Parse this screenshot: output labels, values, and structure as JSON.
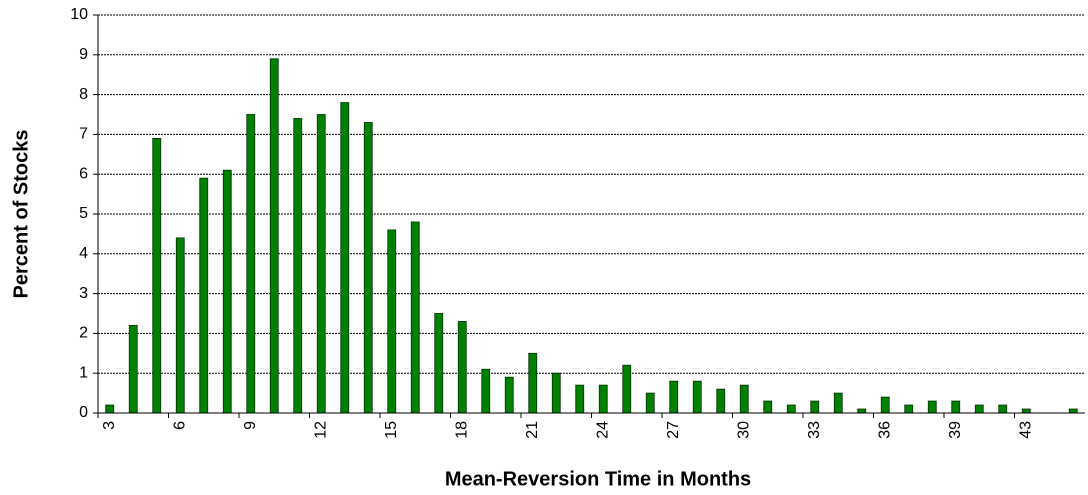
{
  "chart_data": {
    "type": "bar",
    "x_label": "Mean-Reversion Time in Months",
    "y_label": "Percent of Stocks",
    "categories": [
      "3",
      null,
      null,
      "6",
      null,
      null,
      "9",
      null,
      null,
      "12",
      null,
      null,
      "15",
      null,
      null,
      "18",
      null,
      null,
      "21",
      null,
      null,
      "24",
      null,
      null,
      "27",
      null,
      null,
      "30",
      null,
      null,
      "33",
      null,
      null,
      "36",
      null,
      null,
      "39",
      null,
      null,
      "43",
      null,
      null
    ],
    "values": [
      0.2,
      2.2,
      6.9,
      4.4,
      5.9,
      6.1,
      7.5,
      8.9,
      7.4,
      7.5,
      7.8,
      7.3,
      4.6,
      4.8,
      2.5,
      2.3,
      1.1,
      0.9,
      1.5,
      1.0,
      0.7,
      0.7,
      1.2,
      0.5,
      0.8,
      0.8,
      0.6,
      0.7,
      0.3,
      0.2,
      0.3,
      0.5,
      0.1,
      0.4,
      0.2,
      0.3,
      0.3,
      0.2,
      0.2,
      0.1,
      0,
      0.1
    ],
    "color": "#008000",
    "ylim": [
      0,
      10
    ],
    "yticks": [
      0,
      1,
      2,
      3,
      4,
      5,
      6,
      7,
      8,
      9,
      10
    ],
    "grid": true
  }
}
